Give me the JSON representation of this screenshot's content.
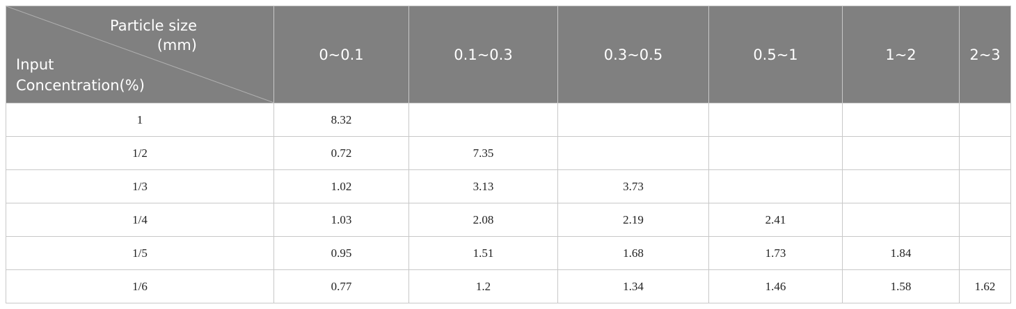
{
  "header": {
    "corner_top": [
      "Particle size",
      "(mm)"
    ],
    "corner_bottom": [
      "Input",
      "Concentration(%)"
    ],
    "columns": [
      "0~0.1",
      "0.1~0.3",
      "0.3~0.5",
      "0.5~1",
      "1~2",
      "2~3"
    ]
  },
  "table": {
    "rows": [
      {
        "label": "1",
        "cells": [
          "8.32"
        ]
      },
      {
        "label": "1/2",
        "cells": [
          "0.72",
          "7.35"
        ]
      },
      {
        "label": "1/3",
        "cells": [
          "1.02",
          "3.13",
          "3.73"
        ]
      },
      {
        "label": "1/4",
        "cells": [
          "1.03",
          "2.08",
          "2.19",
          "2.41"
        ]
      },
      {
        "label": "1/5",
        "cells": [
          "0.95",
          "1.51",
          "1.68",
          "1.73",
          "1.84"
        ]
      },
      {
        "label": "1/6",
        "cells": [
          "0.77",
          "1.2",
          "1.34",
          "1.46",
          "1.58",
          "1.62"
        ]
      }
    ]
  }
}
